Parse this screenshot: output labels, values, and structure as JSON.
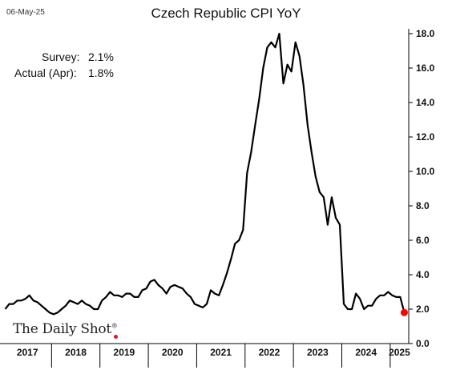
{
  "header": {
    "date": "06-May-25",
    "title": "Czech Republic CPI YoY"
  },
  "annotations": {
    "survey_label": "Survey:",
    "survey_value": "2.1%",
    "actual_label": "Actual (Apr):",
    "actual_value": "1.8%"
  },
  "branding": {
    "name": "The Daily Shot",
    "mark": "®",
    "accent_color": "#e8141b"
  },
  "chart_data": {
    "type": "line",
    "title": "Czech Republic CPI YoY",
    "xlabel": "",
    "ylabel": "",
    "ylim": [
      0,
      18
    ],
    "y_ticks": [
      "0.0",
      "2.0",
      "4.0",
      "6.0",
      "8.0",
      "10.0",
      "12.0",
      "14.0",
      "16.0",
      "18.0"
    ],
    "x_categories": [
      "2017",
      "2018",
      "2019",
      "2020",
      "2021",
      "2022",
      "2023",
      "2024",
      "2025"
    ],
    "grid": false,
    "y_axis_position": "right",
    "line_color": "#000000",
    "marker_color": "#ff0000",
    "series": [
      {
        "x": [
          "2017-01",
          "2017-02",
          "2017-03",
          "2017-04",
          "2017-05",
          "2017-06",
          "2017-07",
          "2017-08",
          "2017-09",
          "2017-10",
          "2017-11",
          "2017-12",
          "2018-01",
          "2018-02",
          "2018-03",
          "2018-04",
          "2018-05",
          "2018-06",
          "2018-07",
          "2018-08",
          "2018-09",
          "2018-10",
          "2018-11",
          "2018-12",
          "2019-01",
          "2019-02",
          "2019-03",
          "2019-04",
          "2019-05",
          "2019-06",
          "2019-07",
          "2019-08",
          "2019-09",
          "2019-10",
          "2019-11",
          "2019-12",
          "2020-01",
          "2020-02",
          "2020-03",
          "2020-04",
          "2020-05",
          "2020-06",
          "2020-07",
          "2020-08",
          "2020-09",
          "2020-10",
          "2020-11",
          "2020-12",
          "2021-01",
          "2021-02",
          "2021-03",
          "2021-04",
          "2021-05",
          "2021-06",
          "2021-07",
          "2021-08",
          "2021-09",
          "2021-10",
          "2021-11",
          "2021-12",
          "2022-01",
          "2022-02",
          "2022-03",
          "2022-04",
          "2022-05",
          "2022-06",
          "2022-07",
          "2022-08",
          "2022-09",
          "2022-10",
          "2022-11",
          "2022-12",
          "2023-01",
          "2023-02",
          "2023-03",
          "2023-04",
          "2023-05",
          "2023-06",
          "2023-07",
          "2023-08",
          "2023-09",
          "2023-10",
          "2023-11",
          "2023-12",
          "2024-01",
          "2024-02",
          "2024-03",
          "2024-04",
          "2024-05",
          "2024-06",
          "2024-07",
          "2024-08",
          "2024-09",
          "2024-10",
          "2024-11",
          "2024-12",
          "2025-01",
          "2025-02",
          "2025-03",
          "2025-04"
        ],
        "values": [
          2.0,
          2.3,
          2.3,
          2.5,
          2.5,
          2.6,
          2.8,
          2.5,
          2.4,
          2.2,
          2.0,
          1.8,
          1.7,
          1.8,
          2.0,
          2.2,
          2.5,
          2.4,
          2.3,
          2.5,
          2.3,
          2.2,
          2.0,
          2.0,
          2.5,
          2.7,
          3.0,
          2.8,
          2.8,
          2.7,
          2.9,
          2.9,
          2.7,
          2.7,
          3.1,
          3.2,
          3.6,
          3.7,
          3.4,
          3.2,
          2.9,
          3.3,
          3.4,
          3.3,
          3.2,
          2.9,
          2.7,
          2.3,
          2.2,
          2.1,
          2.3,
          3.1,
          2.9,
          2.8,
          3.4,
          4.1,
          4.9,
          5.8,
          6.0,
          6.6,
          9.9,
          11.1,
          12.7,
          14.2,
          16.0,
          17.2,
          17.5,
          17.2,
          18.0,
          15.1,
          16.2,
          15.8,
          17.5,
          16.7,
          15.0,
          12.7,
          11.1,
          9.7,
          8.8,
          8.5,
          6.9,
          8.5,
          7.3,
          6.9,
          2.3,
          2.0,
          2.0,
          2.9,
          2.6,
          2.0,
          2.2,
          2.2,
          2.6,
          2.8,
          2.8,
          3.0,
          2.8,
          2.7,
          2.7,
          1.8
        ]
      }
    ],
    "marker": {
      "x": "2025-04",
      "value": 1.8
    }
  }
}
